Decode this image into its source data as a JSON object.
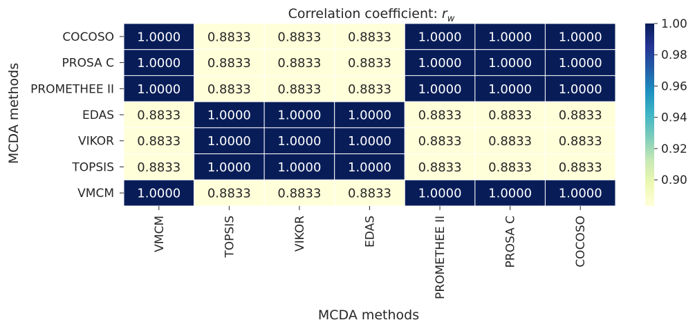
{
  "chart_data": {
    "type": "heatmap",
    "title_prefix": "Correlation coefficient: ",
    "title_symbol": "r",
    "title_subscript": "w",
    "xlabel": "MCDA methods",
    "ylabel": "MCDA methods",
    "x_categories": [
      "VMCM",
      "TOPSIS",
      "VIKOR",
      "EDAS",
      "PROMETHEE II",
      "PROSA C",
      "COCOSO"
    ],
    "y_categories": [
      "COCOSO",
      "PROSA C",
      "PROMETHEE II",
      "EDAS",
      "VIKOR",
      "TOPSIS",
      "VMCM"
    ],
    "values": [
      [
        1.0,
        0.8833,
        0.8833,
        0.8833,
        1.0,
        1.0,
        1.0
      ],
      [
        1.0,
        0.8833,
        0.8833,
        0.8833,
        1.0,
        1.0,
        1.0
      ],
      [
        1.0,
        0.8833,
        0.8833,
        0.8833,
        1.0,
        1.0,
        1.0
      ],
      [
        0.8833,
        1.0,
        1.0,
        1.0,
        0.8833,
        0.8833,
        0.8833
      ],
      [
        0.8833,
        1.0,
        1.0,
        1.0,
        0.8833,
        0.8833,
        0.8833
      ],
      [
        0.8833,
        1.0,
        1.0,
        1.0,
        0.8833,
        0.8833,
        0.8833
      ],
      [
        1.0,
        0.8833,
        0.8833,
        0.8833,
        1.0,
        1.0,
        1.0
      ]
    ],
    "value_format_decimals": 4,
    "colormap": "YlGnBu",
    "colormap_stops": [
      "#ffffd9",
      "#edf8b1",
      "#c7e9b4",
      "#7fcdbb",
      "#41b6c4",
      "#1d91c0",
      "#225ea8",
      "#253494",
      "#081d58"
    ],
    "vmin": 0.8833,
    "vmax": 1.0,
    "colorbar_ticks": [
      "1.00",
      "0.98",
      "0.96",
      "0.94",
      "0.92",
      "0.90"
    ],
    "grid_line_color": "#ffffff",
    "text_dark": "#262626",
    "text_light": "#ffffff"
  }
}
